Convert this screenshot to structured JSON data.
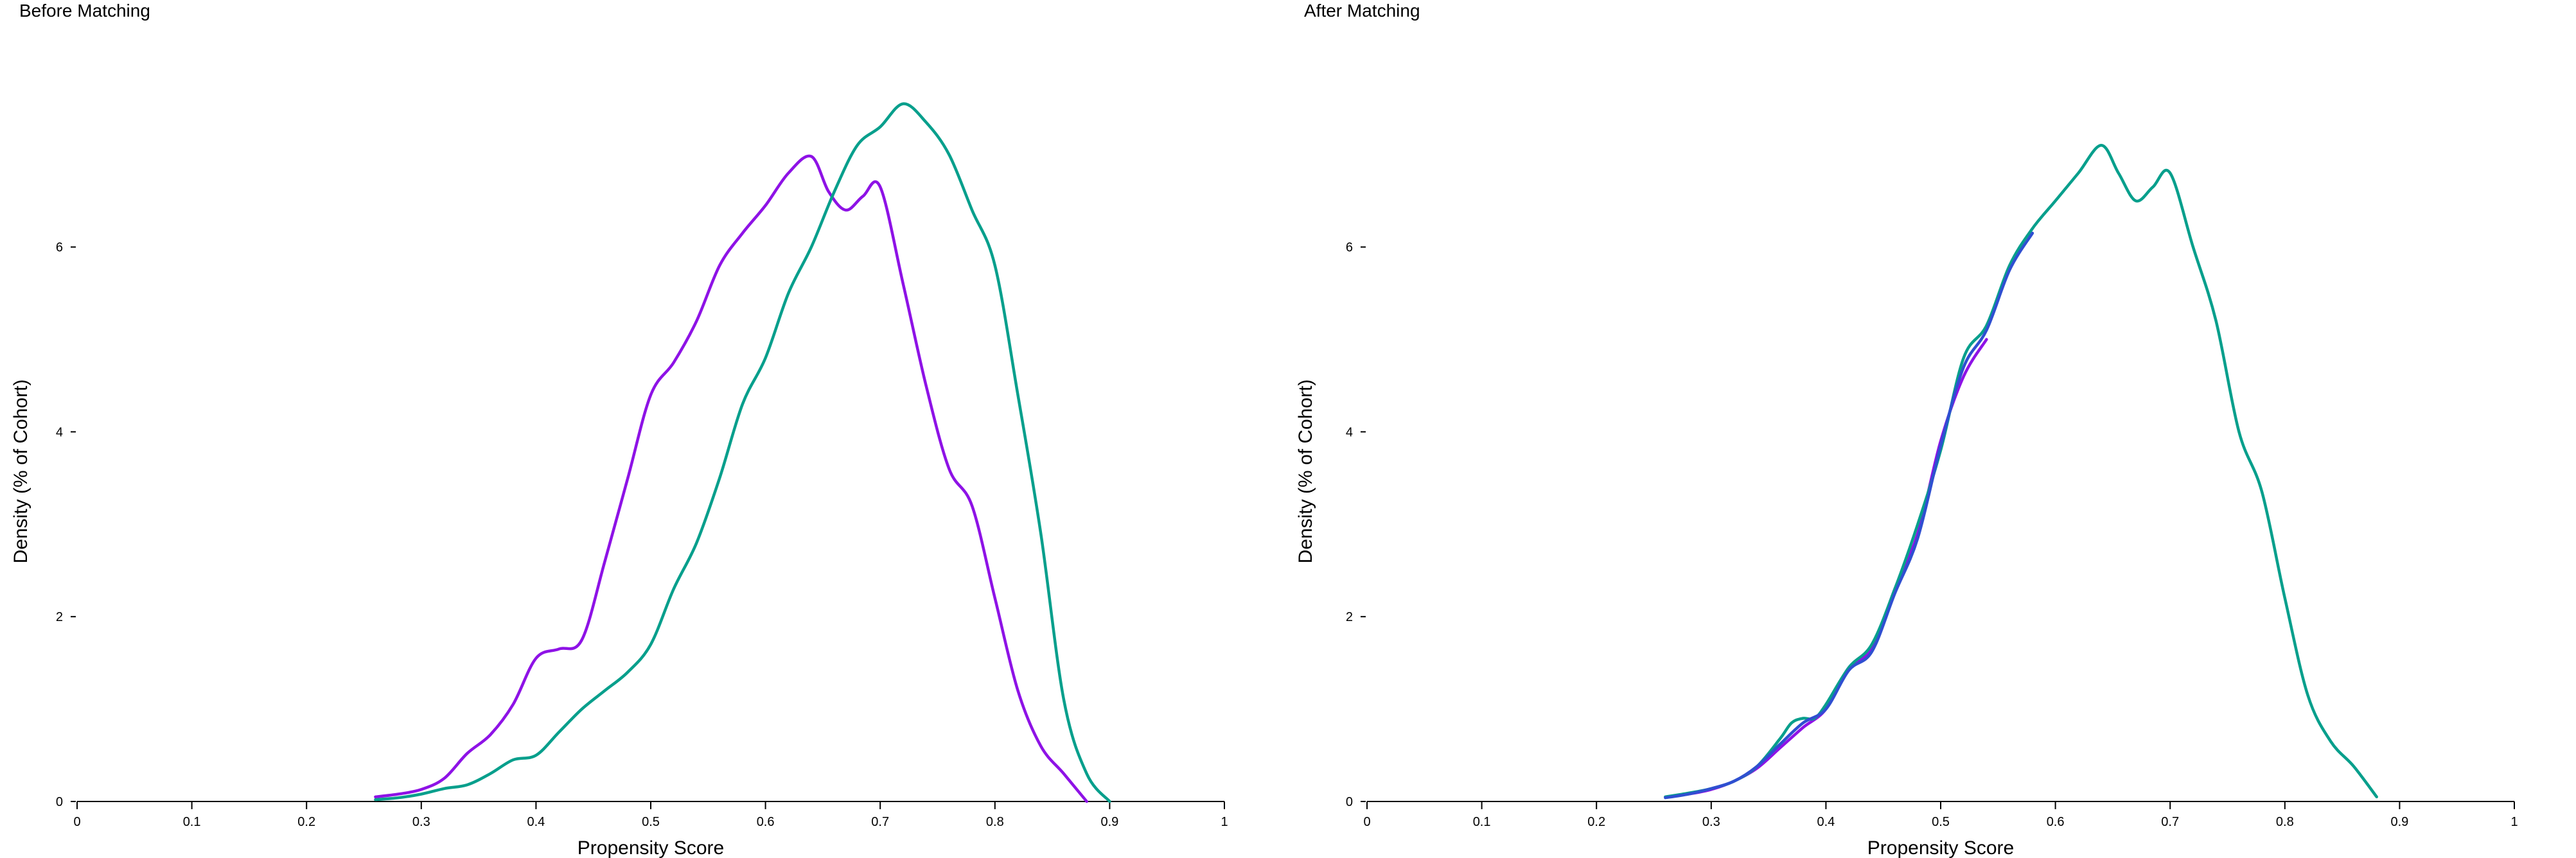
{
  "chart_data": [
    {
      "type": "line",
      "title": "Before Matching",
      "xlabel": "Propensity Score",
      "ylabel": "Density (% of Cohort)",
      "xlim": [
        0,
        1
      ],
      "ylim": [
        0,
        7.7
      ],
      "xticks": [
        "0",
        "0.1",
        "0.2",
        "0.3",
        "0.4",
        "0.5",
        "0.6",
        "0.7",
        "0.8",
        "0.9",
        "1"
      ],
      "yticks": [
        "0",
        "2",
        "4",
        "6"
      ],
      "grid": false,
      "legend": "none",
      "series": [
        {
          "color": "#8e12e6",
          "x": [
            0.26,
            0.28,
            0.3,
            0.32,
            0.34,
            0.36,
            0.38,
            0.4,
            0.42,
            0.44,
            0.46,
            0.48,
            0.5,
            0.52,
            0.54,
            0.56,
            0.58,
            0.6,
            0.62,
            0.64,
            0.655,
            0.67,
            0.685,
            0.7,
            0.72,
            0.74,
            0.76,
            0.78,
            0.8,
            0.82,
            0.84,
            0.86,
            0.88
          ],
          "y": [
            0.05,
            0.08,
            0.13,
            0.25,
            0.52,
            0.72,
            1.05,
            1.55,
            1.65,
            1.75,
            2.6,
            3.5,
            4.4,
            4.75,
            5.2,
            5.8,
            6.15,
            6.45,
            6.8,
            6.98,
            6.6,
            6.4,
            6.55,
            6.65,
            5.6,
            4.5,
            3.6,
            3.2,
            2.2,
            1.2,
            0.6,
            0.3,
            0.0
          ]
        },
        {
          "color": "#079f8c",
          "x": [
            0.26,
            0.28,
            0.3,
            0.32,
            0.34,
            0.36,
            0.38,
            0.4,
            0.42,
            0.44,
            0.46,
            0.48,
            0.5,
            0.52,
            0.54,
            0.56,
            0.58,
            0.6,
            0.62,
            0.64,
            0.66,
            0.68,
            0.7,
            0.72,
            0.74,
            0.76,
            0.78,
            0.8,
            0.82,
            0.84,
            0.86,
            0.88,
            0.9
          ],
          "y": [
            0.02,
            0.04,
            0.08,
            0.14,
            0.18,
            0.3,
            0.45,
            0.5,
            0.75,
            1.0,
            1.2,
            1.4,
            1.7,
            2.3,
            2.8,
            3.5,
            4.3,
            4.8,
            5.5,
            6.0,
            6.6,
            7.1,
            7.3,
            7.55,
            7.35,
            7.0,
            6.4,
            5.8,
            4.4,
            2.9,
            1.1,
            0.3,
            0.0
          ]
        }
      ]
    },
    {
      "type": "line",
      "title": "After Matching",
      "xlabel": "Propensity Score",
      "ylabel": "Density (% of Cohort)",
      "xlim": [
        0,
        1
      ],
      "ylim": [
        0,
        7.7
      ],
      "xticks": [
        "0",
        "0.1",
        "0.2",
        "0.3",
        "0.4",
        "0.5",
        "0.6",
        "0.7",
        "0.8",
        "0.9",
        "1"
      ],
      "yticks": [
        "0",
        "2",
        "4",
        "6"
      ],
      "grid": false,
      "legend": "none",
      "series": [
        {
          "color": "#8e12e6",
          "x": [
            0.26,
            0.28,
            0.3,
            0.32,
            0.34,
            0.36,
            0.38,
            0.4,
            0.42,
            0.44,
            0.46,
            0.48,
            0.5,
            0.52,
            0.54
          ],
          "y": [
            0.05,
            0.08,
            0.13,
            0.22,
            0.36,
            0.58,
            0.8,
            1.0,
            1.45,
            1.65,
            2.3,
            2.9,
            3.9,
            4.6,
            5.0
          ]
        },
        {
          "color": "#079f8c",
          "x": [
            0.26,
            0.28,
            0.3,
            0.32,
            0.34,
            0.36,
            0.37,
            0.38,
            0.39,
            0.4,
            0.42,
            0.44,
            0.46,
            0.48,
            0.5,
            0.52,
            0.54,
            0.56,
            0.58,
            0.6,
            0.62,
            0.64,
            0.655,
            0.67,
            0.685,
            0.7,
            0.72,
            0.74,
            0.76,
            0.78,
            0.8,
            0.82,
            0.84,
            0.86,
            0.88
          ],
          "y": [
            0.05,
            0.09,
            0.14,
            0.22,
            0.38,
            0.68,
            0.85,
            0.9,
            0.9,
            1.05,
            1.45,
            1.7,
            2.3,
            3.0,
            3.8,
            4.8,
            5.15,
            5.8,
            6.2,
            6.5,
            6.8,
            7.1,
            6.8,
            6.5,
            6.65,
            6.8,
            6.0,
            5.2,
            4.0,
            3.35,
            2.2,
            1.15,
            0.65,
            0.38,
            0.05
          ]
        },
        {
          "color": "#2f4fd1",
          "x": [
            0.26,
            0.28,
            0.3,
            0.32,
            0.34,
            0.36,
            0.38,
            0.4,
            0.42,
            0.44,
            0.46,
            0.48,
            0.5,
            0.52,
            0.54,
            0.56,
            0.58
          ],
          "y": [
            0.04,
            0.08,
            0.14,
            0.22,
            0.38,
            0.62,
            0.85,
            1.0,
            1.42,
            1.62,
            2.25,
            2.85,
            3.85,
            4.7,
            5.1,
            5.75,
            6.15
          ]
        }
      ]
    }
  ]
}
